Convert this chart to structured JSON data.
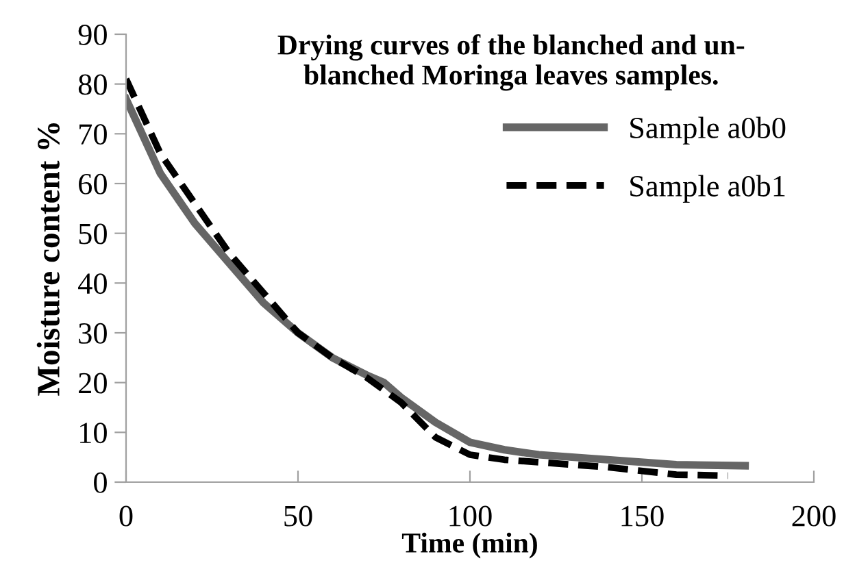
{
  "chart_data": {
    "type": "line",
    "title": "Drying curves of the blanched and un-\nblanched Moringa leaves samples.",
    "xlabel": "Time (min)",
    "ylabel": "Moisture content %",
    "series": [
      {
        "name": "Sample a0b0",
        "color": "#666666",
        "line_style": "solid",
        "x": [
          0,
          10,
          20,
          30,
          40,
          50,
          60,
          70,
          75,
          80,
          90,
          100,
          110,
          120,
          140,
          160,
          180
        ],
        "values": [
          77,
          62,
          52,
          44,
          36,
          30,
          25,
          21.5,
          20,
          17,
          12,
          8,
          6.5,
          5.5,
          4.5,
          3.5,
          3.3
        ]
      },
      {
        "name": "Sample a0b1",
        "color": "#000000",
        "line_style": "dashed",
        "x": [
          0,
          10,
          20,
          30,
          40,
          50,
          60,
          70,
          80,
          90,
          100,
          110,
          120,
          140,
          160,
          175
        ],
        "values": [
          81,
          66,
          56,
          46,
          38,
          30,
          25,
          21,
          16,
          9,
          5.5,
          4.5,
          4,
          3,
          1.5,
          1.3
        ]
      }
    ],
    "xlim": [
      0,
      200
    ],
    "xticks": [
      0,
      50,
      100,
      150,
      200
    ],
    "ylim": [
      0,
      90
    ],
    "yticks": [
      0,
      10,
      20,
      30,
      40,
      50,
      60,
      70,
      80,
      90
    ],
    "grid": false,
    "legend": "right",
    "marker": "none"
  }
}
